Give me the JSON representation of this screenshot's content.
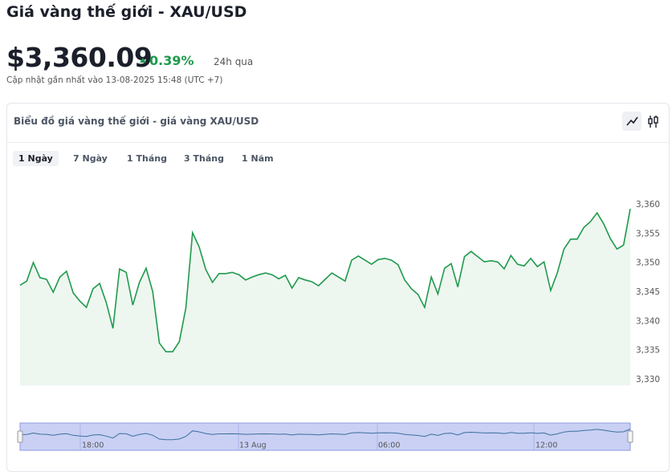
{
  "header": {
    "title": "Giá vàng thế giới - XAU/USD",
    "price": "$3,360.09",
    "change": "0.39%",
    "period": "24h qua",
    "updated": "Cập nhật gần nhất vào 13-08-2025 15:48 (UTC +7)"
  },
  "tabs": [
    "1 Ngày",
    "7 Ngày",
    "1 Tháng",
    "3 Tháng",
    "1 Năm"
  ],
  "chart_data": {
    "type": "line",
    "title": "Biểu đồ giá vàng thế giới - giá vàng XAU/USD",
    "color": "#1f9a4c",
    "values": [
      3346.2,
      3346.9,
      3350.1,
      3347.5,
      3347.2,
      3345.0,
      3347.6,
      3348.6,
      3344.9,
      3343.5,
      3342.4,
      3345.6,
      3346.5,
      3343.2,
      3338.8,
      3349.0,
      3348.4,
      3342.8,
      3346.7,
      3349.1,
      3345.1,
      3336.3,
      3334.8,
      3334.8,
      3336.5,
      3342.3,
      3355.2,
      3352.8,
      3348.9,
      3346.7,
      3348.2,
      3348.2,
      3348.4,
      3348.0,
      3347.1,
      3347.6,
      3348.0,
      3348.3,
      3348.0,
      3347.3,
      3347.9,
      3345.7,
      3347.5,
      3347.1,
      3346.8,
      3346.1,
      3347.2,
      3348.3,
      3347.6,
      3346.9,
      3350.5,
      3351.2,
      3350.5,
      3349.8,
      3350.6,
      3350.8,
      3350.5,
      3349.7,
      3347.1,
      3345.6,
      3344.6,
      3342.4,
      3347.6,
      3344.7,
      3349.1,
      3349.9,
      3345.9,
      3351.1,
      3352.0,
      3351.1,
      3350.2,
      3350.4,
      3350.2,
      3349.0,
      3351.3,
      3349.8,
      3349.5,
      3350.8,
      3349.4,
      3350.2,
      3345.3,
      3348.3,
      3352.4,
      3354.1,
      3354.1,
      3356.1,
      3357.1,
      3358.6,
      3356.7,
      3354.2,
      3352.4,
      3353.1,
      3359.3
    ],
    "ylim": [
      3329,
      3362
    ],
    "yticks": [
      {
        "value": 3330,
        "label": "3,330"
      },
      {
        "value": 3335,
        "label": "3,335"
      },
      {
        "value": 3340,
        "label": "3,340"
      },
      {
        "value": 3345,
        "label": "3,345"
      },
      {
        "value": 3350,
        "label": "3,350"
      },
      {
        "value": 3355,
        "label": "3,355"
      },
      {
        "value": 3360,
        "label": "3,360"
      }
    ],
    "navigator_labels": [
      "18:00",
      "13 Aug",
      "06:00",
      "12:00"
    ]
  }
}
